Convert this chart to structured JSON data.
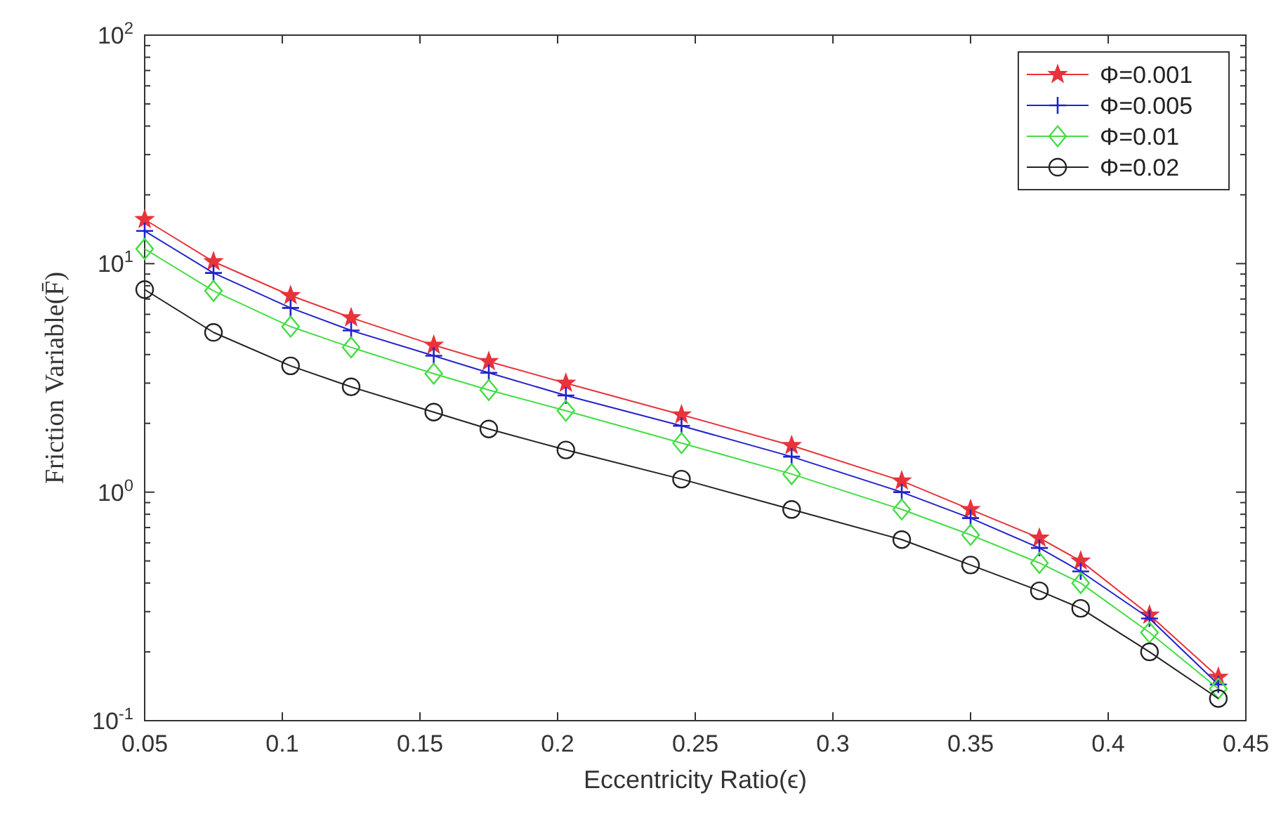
{
  "chart_data": {
    "type": "line",
    "xlabel": "Eccentricity Ratio(ϵ)",
    "ylabel": "Friction Variable(F̄)",
    "x": [
      0.05,
      0.075,
      0.103,
      0.125,
      0.155,
      0.175,
      0.203,
      0.245,
      0.285,
      0.325,
      0.35,
      0.375,
      0.39,
      0.415,
      0.44
    ],
    "series": [
      {
        "name": "Φ=0.001",
        "color": "#e8333a",
        "marker": "star",
        "values": [
          15.6,
          10.2,
          7.25,
          5.8,
          4.4,
          3.73,
          3.0,
          2.18,
          1.6,
          1.12,
          0.84,
          0.63,
          0.5,
          0.29,
          0.155
        ]
      },
      {
        "name": "Φ=0.005",
        "color": "#2222cc",
        "marker": "cross",
        "values": [
          13.9,
          9.1,
          6.4,
          5.1,
          3.95,
          3.33,
          2.65,
          1.95,
          1.43,
          1.0,
          0.77,
          0.57,
          0.45,
          0.28,
          0.144
        ]
      },
      {
        "name": "Φ=0.01",
        "color": "#44dd44",
        "marker": "diamond",
        "values": [
          11.6,
          7.6,
          5.3,
          4.3,
          3.3,
          2.8,
          2.27,
          1.64,
          1.2,
          0.84,
          0.65,
          0.49,
          0.4,
          0.243,
          0.138
        ]
      },
      {
        "name": "Φ=0.02",
        "color": "#222222",
        "marker": "circle",
        "values": [
          7.7,
          5.0,
          3.57,
          2.89,
          2.24,
          1.89,
          1.53,
          1.14,
          0.84,
          0.62,
          0.48,
          0.37,
          0.31,
          0.2,
          0.125
        ]
      }
    ],
    "log": "y",
    "grid": false,
    "legend": "top right",
    "line_style": "solid",
    "xlim": [
      0.05,
      0.45
    ],
    "xticks": [
      0.05,
      0.1,
      0.15,
      0.2,
      0.25,
      0.3,
      0.35,
      0.4,
      0.45
    ],
    "ylim": [
      0.1,
      100
    ],
    "yticks": [
      {
        "value": 0.1,
        "label": "10$^{-1}$"
      },
      {
        "value": 0.2,
        "label": null
      },
      {
        "value": 0.3,
        "label": null
      },
      {
        "value": 0.4,
        "label": null
      },
      {
        "value": 0.5,
        "label": null
      },
      {
        "value": 0.6,
        "label": null
      },
      {
        "value": 0.7,
        "label": null
      },
      {
        "value": 0.8,
        "label": null
      },
      {
        "value": 0.9,
        "label": null
      },
      {
        "value": 1,
        "label": "10$^{0}$"
      },
      {
        "value": 2,
        "label": null
      },
      {
        "value": 3,
        "label": null
      },
      {
        "value": 4,
        "label": null
      },
      {
        "value": 5,
        "label": null
      },
      {
        "value": 6,
        "label": null
      },
      {
        "value": 7,
        "label": null
      },
      {
        "value": 8,
        "label": null
      },
      {
        "value": 9,
        "label": null
      },
      {
        "value": 10,
        "label": "10$^{1}$"
      },
      {
        "value": 20,
        "label": null
      },
      {
        "value": 30,
        "label": null
      },
      {
        "value": 40,
        "label": null
      },
      {
        "value": 50,
        "label": null
      },
      {
        "value": 60,
        "label": null
      },
      {
        "value": 70,
        "label": null
      },
      {
        "value": 80,
        "label": null
      },
      {
        "value": 90,
        "label": null
      },
      {
        "value": 100,
        "label": "10$^{2}$"
      }
    ]
  }
}
